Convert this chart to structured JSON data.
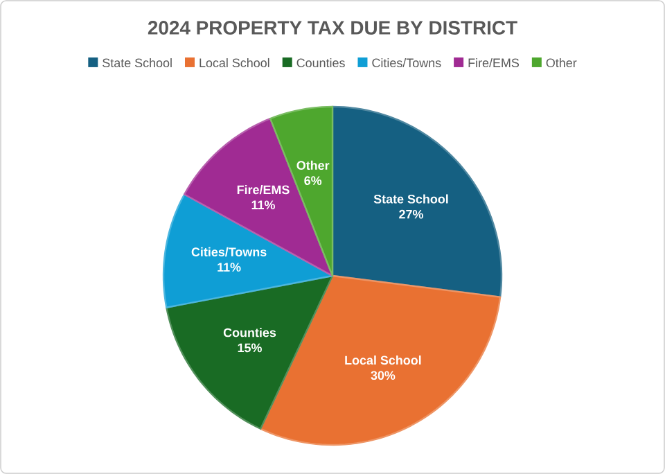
{
  "chart_data": {
    "type": "pie",
    "title": "2024 PROPERTY TAX DUE BY DISTRICT",
    "categories": [
      "State School",
      "Local School",
      "Counties",
      "Cities/Towns",
      "Fire/EMS",
      "Other"
    ],
    "values": [
      27,
      30,
      15,
      11,
      11,
      6
    ],
    "value_labels": [
      "27%",
      "30%",
      "15%",
      "11%",
      "11%",
      "6%"
    ],
    "colors": [
      "#156082",
      "#e97132",
      "#196b24",
      "#0f9ed5",
      "#a02b93",
      "#4ea72e"
    ],
    "legend": "top"
  }
}
